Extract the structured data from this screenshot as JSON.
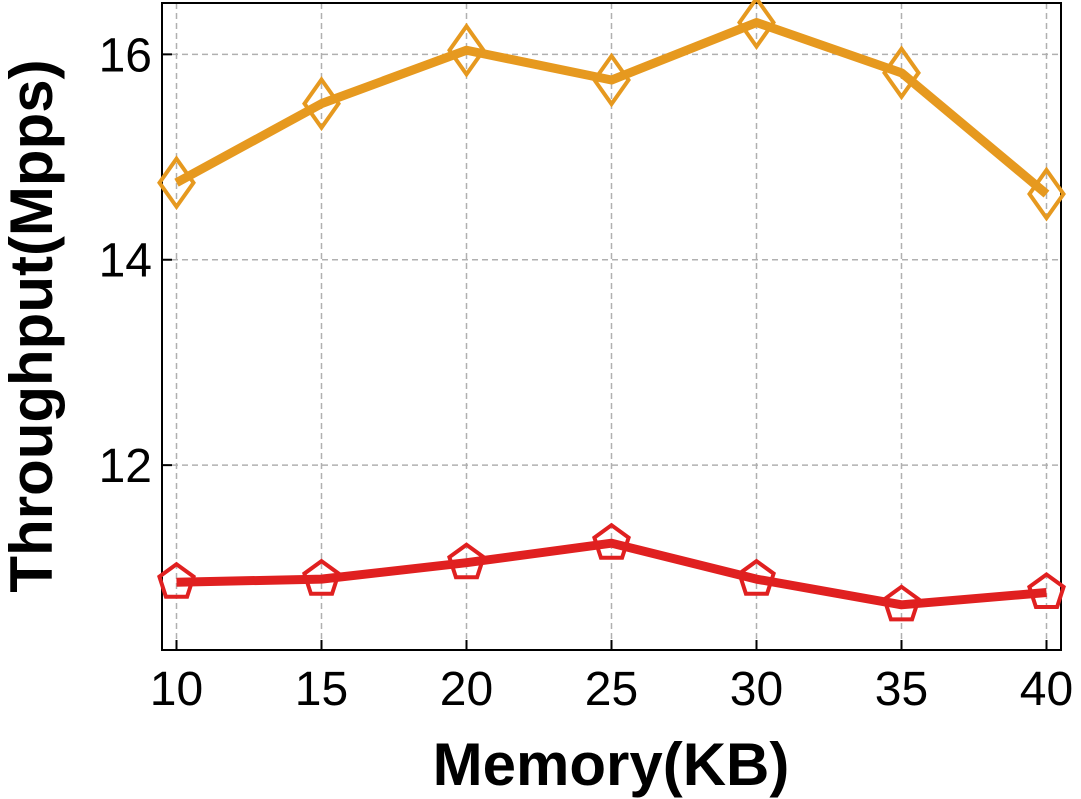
{
  "chart_data": {
    "type": "line",
    "x_label": "Memory(KB)",
    "y_label": "Throughput(Mpps)",
    "x": [
      10,
      15,
      20,
      25,
      30,
      35,
      40
    ],
    "series": [
      {
        "color": "#e6991f",
        "marker": "diamond",
        "values": [
          14.75,
          15.52,
          16.04,
          15.75,
          16.31,
          15.82,
          14.64
        ]
      },
      {
        "color": "#e02020",
        "marker": "pentagon",
        "values": [
          10.86,
          10.89,
          11.05,
          11.24,
          10.89,
          10.64,
          10.76
        ]
      }
    ],
    "xlim": [
      9.5,
      40.5
    ],
    "xticks": [
      10,
      15,
      20,
      25,
      30,
      35,
      40
    ],
    "ylim": [
      10.2,
      16.5
    ],
    "yticks": [
      12,
      14,
      16
    ],
    "grid": true
  }
}
